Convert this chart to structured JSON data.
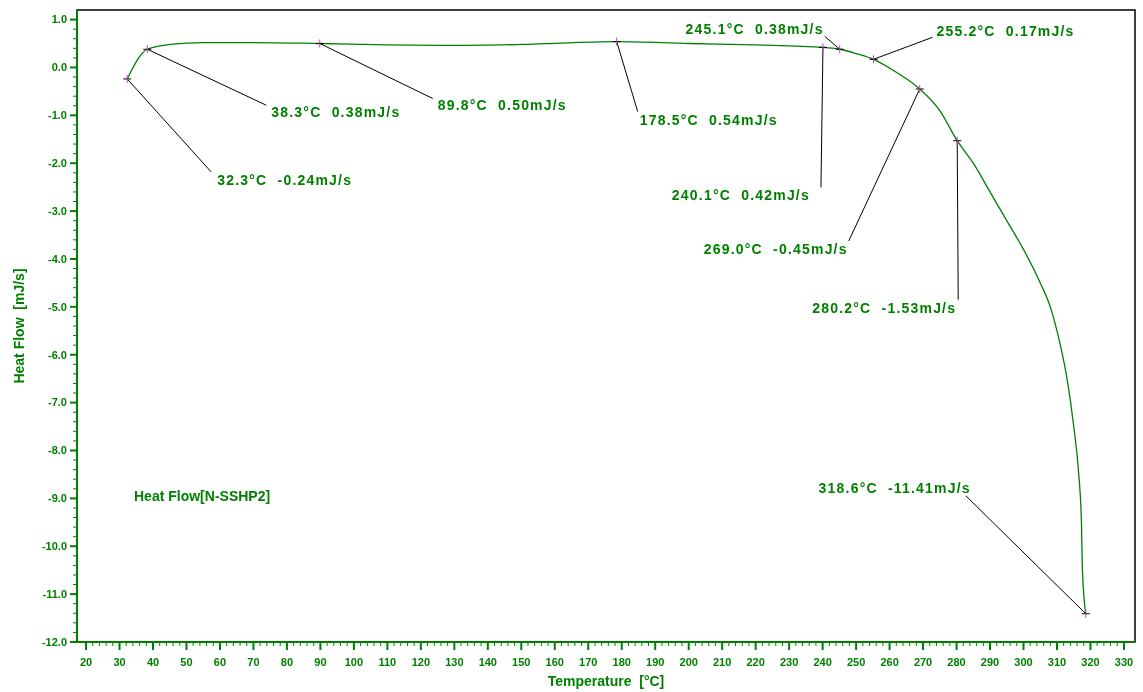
{
  "chart_data": {
    "type": "line",
    "xlabel": "Temperature  [°C]",
    "ylabel": "Heat Flow  [mJ/s]",
    "xlim": [
      17.3,
      333.3
    ],
    "xticks": [
      20,
      30,
      40,
      50,
      60,
      70,
      80,
      90,
      100,
      110,
      120,
      130,
      140,
      150,
      160,
      170,
      180,
      190,
      200,
      210,
      220,
      230,
      240,
      250,
      260,
      270,
      280,
      290,
      300,
      310,
      320,
      330
    ],
    "ylim": [
      -12,
      1.2
    ],
    "yticks": [
      {
        "value": 1,
        "label": "1.0"
      },
      {
        "value": 0,
        "label": "0.0"
      },
      {
        "value": -1,
        "label": "-1.0"
      },
      {
        "value": -2,
        "label": "-2.0"
      },
      {
        "value": -3,
        "label": "-3.0"
      },
      {
        "value": -4,
        "label": "-4.0"
      },
      {
        "value": -5,
        "label": "-5.0"
      },
      {
        "value": -6,
        "label": "-6.0"
      },
      {
        "value": -7,
        "label": "-7.0"
      },
      {
        "value": -8,
        "label": "-8.0"
      },
      {
        "value": -9,
        "label": "-9.0"
      },
      {
        "value": -10,
        "label": "-10.0"
      },
      {
        "value": -11,
        "label": "-11.0"
      },
      {
        "value": -12,
        "label": "-12.0"
      }
    ],
    "grid": false,
    "legend": "bottom left",
    "line_style": "solid",
    "series": [
      {
        "name": "Heat Flow[N-SSHP2]",
        "color": "#008000",
        "x": [
          32.3,
          38.3,
          45,
          55,
          70,
          89.8,
          110,
          130,
          150,
          178.5,
          200,
          220,
          240.1,
          245.1,
          250,
          255.2,
          262,
          269.0,
          275,
          280.2,
          285,
          290,
          295,
          300,
          305,
          308,
          311,
          313,
          315,
          316.5,
          317.3,
          317.6,
          318.6
        ],
        "values": [
          -0.24,
          0.38,
          0.48,
          0.52,
          0.52,
          0.5,
          0.47,
          0.46,
          0.48,
          0.54,
          0.5,
          0.47,
          0.42,
          0.38,
          0.29,
          0.17,
          -0.1,
          -0.45,
          -0.9,
          -1.53,
          -2.0,
          -2.6,
          -3.2,
          -3.8,
          -4.5,
          -5.0,
          -5.8,
          -6.5,
          -7.5,
          -8.5,
          -9.5,
          -10.5,
          -11.41
        ]
      }
    ],
    "annotations": [
      {
        "text": "32.3°C  -0.24mJ/s",
        "x": 32.3,
        "y": -0.24
      },
      {
        "text": "38.3°C  0.38mJ/s",
        "x": 38.3,
        "y": 0.38
      },
      {
        "text": "89.8°C  0.50mJ/s",
        "x": 89.8,
        "y": 0.5
      },
      {
        "text": "178.5°C  0.54mJ/s",
        "x": 178.5,
        "y": 0.54
      },
      {
        "text": "245.1°C  0.38mJ/s",
        "x": 245.1,
        "y": 0.38
      },
      {
        "text": "240.1°C  0.42mJ/s",
        "x": 240.1,
        "y": 0.42
      },
      {
        "text": "255.2°C  0.17mJ/s",
        "x": 255.2,
        "y": 0.17
      },
      {
        "text": "269.0°C  -0.45mJ/s",
        "x": 269.0,
        "y": -0.45
      },
      {
        "text": "280.2°C  -1.53mJ/s",
        "x": 280.2,
        "y": -1.53
      },
      {
        "text": "318.6°C  -11.41mJ/s",
        "x": 318.6,
        "y": -11.41
      }
    ]
  }
}
